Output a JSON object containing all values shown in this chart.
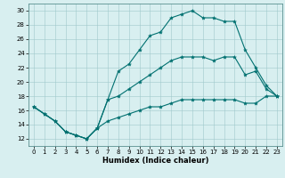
{
  "xlabel": "Humidex (Indice chaleur)",
  "ylabel": "",
  "xlim": [
    -0.5,
    23.5
  ],
  "ylim": [
    11,
    31
  ],
  "yticks": [
    12,
    14,
    16,
    18,
    20,
    22,
    24,
    26,
    28,
    30
  ],
  "xticks": [
    0,
    1,
    2,
    3,
    4,
    5,
    6,
    7,
    8,
    9,
    10,
    11,
    12,
    13,
    14,
    15,
    16,
    17,
    18,
    19,
    20,
    21,
    22,
    23
  ],
  "bg_color": "#d8eff0",
  "grid_color": "#a0c8cc",
  "line_color": "#007070",
  "line1_x": [
    0,
    1,
    2,
    3,
    4,
    5,
    6,
    7,
    8,
    9,
    10,
    11,
    12,
    13,
    14,
    15,
    16,
    17,
    18,
    19,
    20,
    21,
    22,
    23
  ],
  "line1_y": [
    16.5,
    15.5,
    14.5,
    13.0,
    12.5,
    12.0,
    13.5,
    17.5,
    21.5,
    22.5,
    24.5,
    26.5,
    27.0,
    29.0,
    29.5,
    30.0,
    29.0,
    29.0,
    28.5,
    28.5,
    24.5,
    22.0,
    19.5,
    18.0
  ],
  "line2_x": [
    0,
    1,
    2,
    3,
    4,
    5,
    6,
    7,
    8,
    9,
    10,
    11,
    12,
    13,
    14,
    15,
    16,
    17,
    18,
    19,
    20,
    21,
    22,
    23
  ],
  "line2_y": [
    16.5,
    15.5,
    14.5,
    13.0,
    12.5,
    12.0,
    13.5,
    17.5,
    18.0,
    19.0,
    20.0,
    21.0,
    22.0,
    23.0,
    23.5,
    23.5,
    23.5,
    23.0,
    23.5,
    23.5,
    21.0,
    21.5,
    19.0,
    18.0
  ],
  "line3_x": [
    0,
    1,
    2,
    3,
    4,
    5,
    6,
    7,
    8,
    9,
    10,
    11,
    12,
    13,
    14,
    15,
    16,
    17,
    18,
    19,
    20,
    21,
    22,
    23
  ],
  "line3_y": [
    16.5,
    15.5,
    14.5,
    13.0,
    12.5,
    12.0,
    13.5,
    14.5,
    15.0,
    15.5,
    16.0,
    16.5,
    16.5,
    17.0,
    17.5,
    17.5,
    17.5,
    17.5,
    17.5,
    17.5,
    17.0,
    17.0,
    18.0,
    18.0
  ],
  "xlabel_fontsize": 6,
  "tick_fontsize": 5,
  "marker_size": 3,
  "linewidth": 0.8
}
